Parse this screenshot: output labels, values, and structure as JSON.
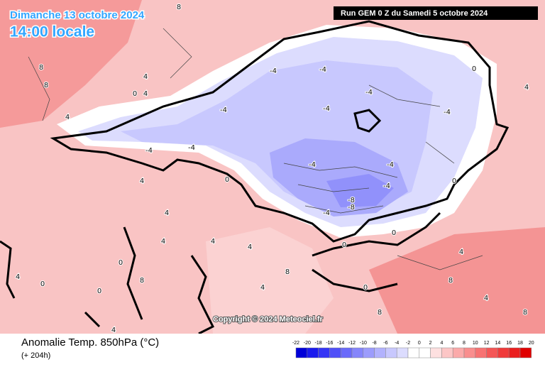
{
  "header": {
    "date": "Dimanche 13 octobre 2024",
    "time": "14:00 locale",
    "run": "Run GEM 0 Z du Samedi 5 octobre 2024"
  },
  "map": {
    "copyright": "Copyright © 2024 Meteociel.fr",
    "contour_labels": [
      8,
      8,
      4,
      4,
      0,
      8,
      4,
      -4,
      -4,
      -4,
      -4,
      -4,
      -4,
      0,
      0,
      4,
      4,
      -4,
      -4,
      -4,
      -4,
      -8,
      -8,
      -4,
      -4,
      0,
      0,
      0,
      4,
      4,
      4,
      4,
      8,
      8,
      8,
      4,
      0,
      0,
      0,
      4,
      4,
      8,
      4,
      0,
      4,
      8
    ]
  },
  "footer": {
    "title": "Anomalie Temp. 850hPa (°C)",
    "lead": "(+ 204h)"
  },
  "legend": {
    "ticks": [
      -22,
      -20,
      -18,
      -16,
      -14,
      -12,
      -10,
      -8,
      -6,
      -4,
      -2,
      0,
      2,
      4,
      6,
      8,
      10,
      12,
      14,
      16,
      18,
      20
    ],
    "colors": [
      "#0000d8",
      "#1a1aee",
      "#3535f5",
      "#5050f8",
      "#6a6afa",
      "#8585fb",
      "#9c9cfc",
      "#b2b2fd",
      "#c8c8fe",
      "#dcdcfe",
      "#ffffff",
      "#ffffff",
      "#fde0e0",
      "#fcc6c6",
      "#fbaaaa",
      "#f98e8e",
      "#f77272",
      "#f45656",
      "#f03a3a",
      "#ea1e1e",
      "#e00000"
    ]
  }
}
